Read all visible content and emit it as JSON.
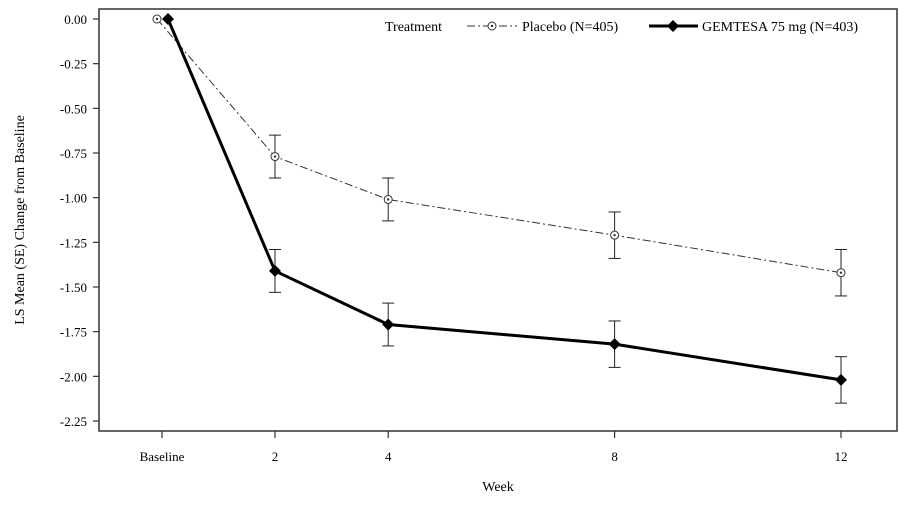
{
  "chart_data": {
    "type": "line",
    "title": "",
    "xlabel": "Week",
    "ylabel": "LS Mean (SE) Change from Baseline",
    "categories": [
      "Baseline",
      "2",
      "4",
      "8",
      "12"
    ],
    "x_positions_weeks": [
      0,
      2,
      4,
      8,
      12
    ],
    "ylim": [
      -2.25,
      0.0
    ],
    "yticks": [
      "0.00",
      "-0.25",
      "-0.50",
      "-0.75",
      "-1.00",
      "-1.25",
      "-1.50",
      "-1.75",
      "-2.00",
      "-2.25"
    ],
    "ytick_values": [
      0,
      -0.25,
      -0.5,
      -0.75,
      -1.0,
      -1.25,
      -1.5,
      -1.75,
      -2.0,
      -2.25
    ],
    "grid": false,
    "legend": {
      "title": "Treatment",
      "placement": "top-right"
    },
    "series": [
      {
        "name": "Placebo (N=405)",
        "style": "dash-dot",
        "marker": "circle-dot",
        "color": "#333333",
        "values": [
          0.0,
          -0.77,
          -1.01,
          -1.21,
          -1.42
        ],
        "se": [
          0.0,
          0.12,
          0.12,
          0.13,
          0.13
        ]
      },
      {
        "name": "GEMTESA 75 mg (N=403)",
        "style": "solid",
        "marker": "diamond",
        "color": "#000000",
        "values": [
          0.0,
          -1.41,
          -1.71,
          -1.82,
          -2.02
        ],
        "se": [
          0.0,
          0.12,
          0.12,
          0.13,
          0.13
        ]
      }
    ]
  }
}
